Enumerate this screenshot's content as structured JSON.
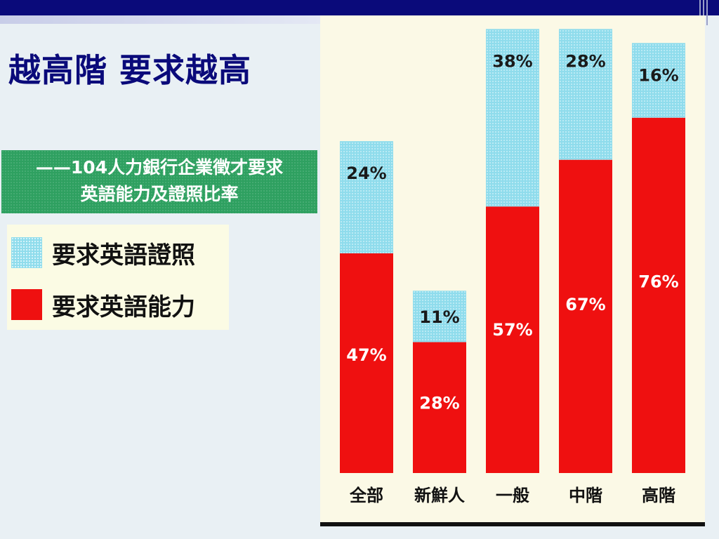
{
  "slide": {
    "title": "越高階 要求越高",
    "subtitle_line1": "——104人力銀行企業徵才要求",
    "subtitle_line2": "英語能力及證照比率"
  },
  "legend": {
    "items": [
      {
        "label": "要求英語證照",
        "color": "#8fdcec"
      },
      {
        "label": "要求英語能力",
        "color": "#ef1010"
      }
    ]
  },
  "chart_data": {
    "type": "bar",
    "stacked": true,
    "categories": [
      "全部",
      "新鮮人",
      "一般",
      "中階",
      "高階"
    ],
    "series": [
      {
        "name": "要求英語能力",
        "color": "#ef1010",
        "values": [
          47,
          28,
          57,
          67,
          76
        ]
      },
      {
        "name": "要求英語證照",
        "color": "#8fdcec",
        "values": [
          24,
          11,
          38,
          28,
          16
        ]
      }
    ],
    "data_labels": true,
    "unit": "%",
    "legend_position": "left"
  }
}
